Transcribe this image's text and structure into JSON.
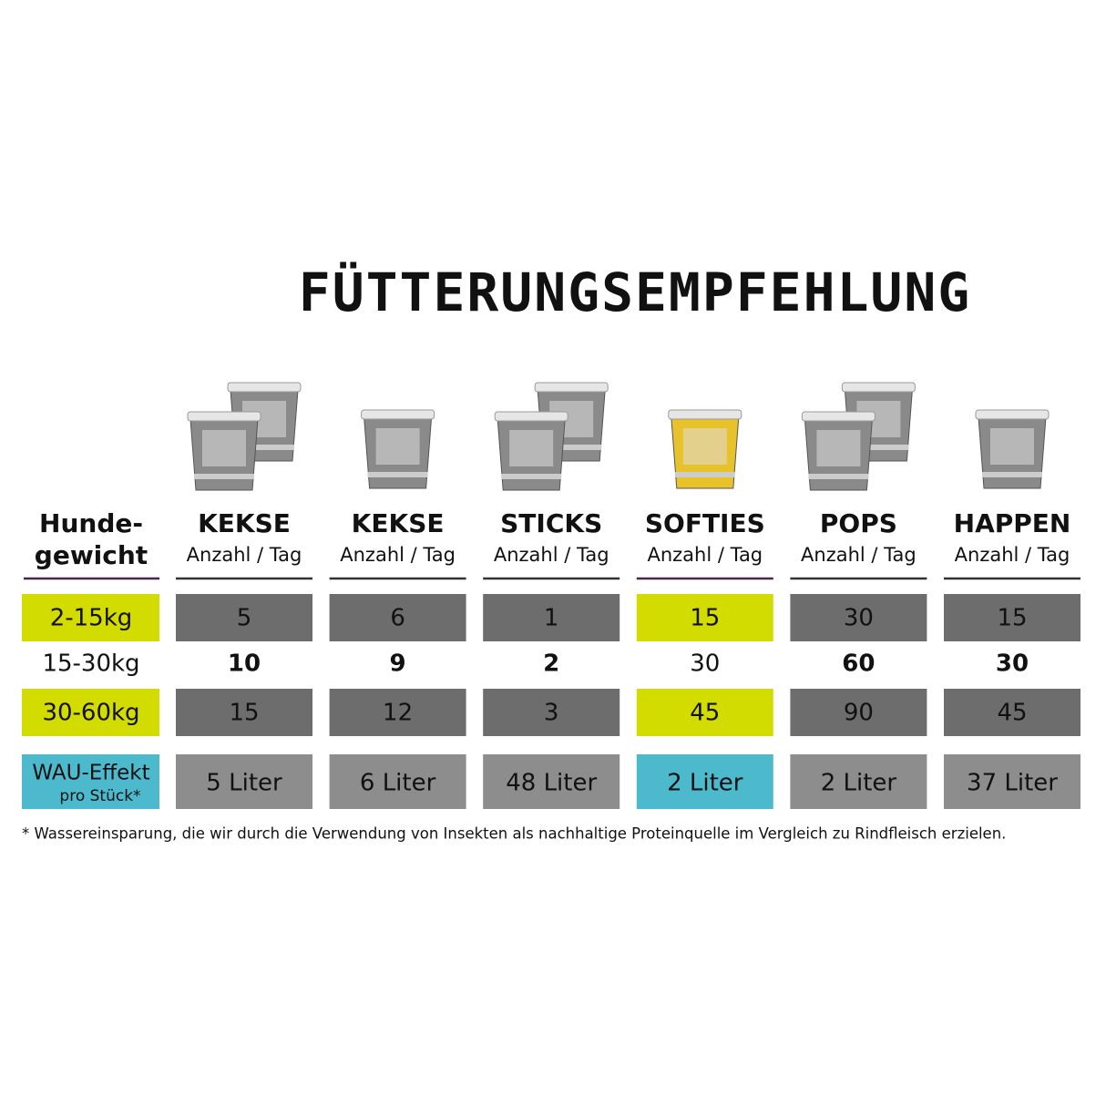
{
  "title": "FÜTTERUNGSEMPFEHLUNG",
  "table": {
    "header": {
      "label": [
        "Hunde-",
        "gewicht"
      ]
    },
    "columns": [
      {
        "name": "KEKSE",
        "unit": "Anzahl / Tag",
        "values": [
          "5",
          "10",
          "15"
        ],
        "wau": "5 Liter"
      },
      {
        "name": "KEKSE",
        "unit": "Anzahl / Tag",
        "values": [
          "6",
          "9",
          "12"
        ],
        "wau": "6 Liter"
      },
      {
        "name": "STICKS",
        "unit": "Anzahl / Tag",
        "values": [
          "1",
          "2",
          "3"
        ],
        "wau": "48 Liter"
      },
      {
        "name": "SOFTIES",
        "unit": "Anzahl / Tag",
        "values": [
          "15",
          "30",
          "45"
        ],
        "wau": "2 Liter"
      },
      {
        "name": "POPS",
        "unit": "Anzahl / Tag",
        "values": [
          "30",
          "60",
          "90"
        ],
        "wau": "2 Liter"
      },
      {
        "name": "HAPPEN",
        "unit": "Anzahl / Tag",
        "values": [
          "15",
          "30",
          "45"
        ],
        "wau": "37 Liter"
      }
    ],
    "rows": [
      "2-15kg",
      "15-30kg",
      "30-60kg"
    ],
    "wau_label": {
      "title": "WAU-Effekt",
      "subtitle": "pro Stück*"
    }
  },
  "footnote": "* Wassereinsparung, die wir durch die Verwendung von Insekten als nachhaltige Proteinquelle im Vergleich zu Rindfleisch erzielen."
}
